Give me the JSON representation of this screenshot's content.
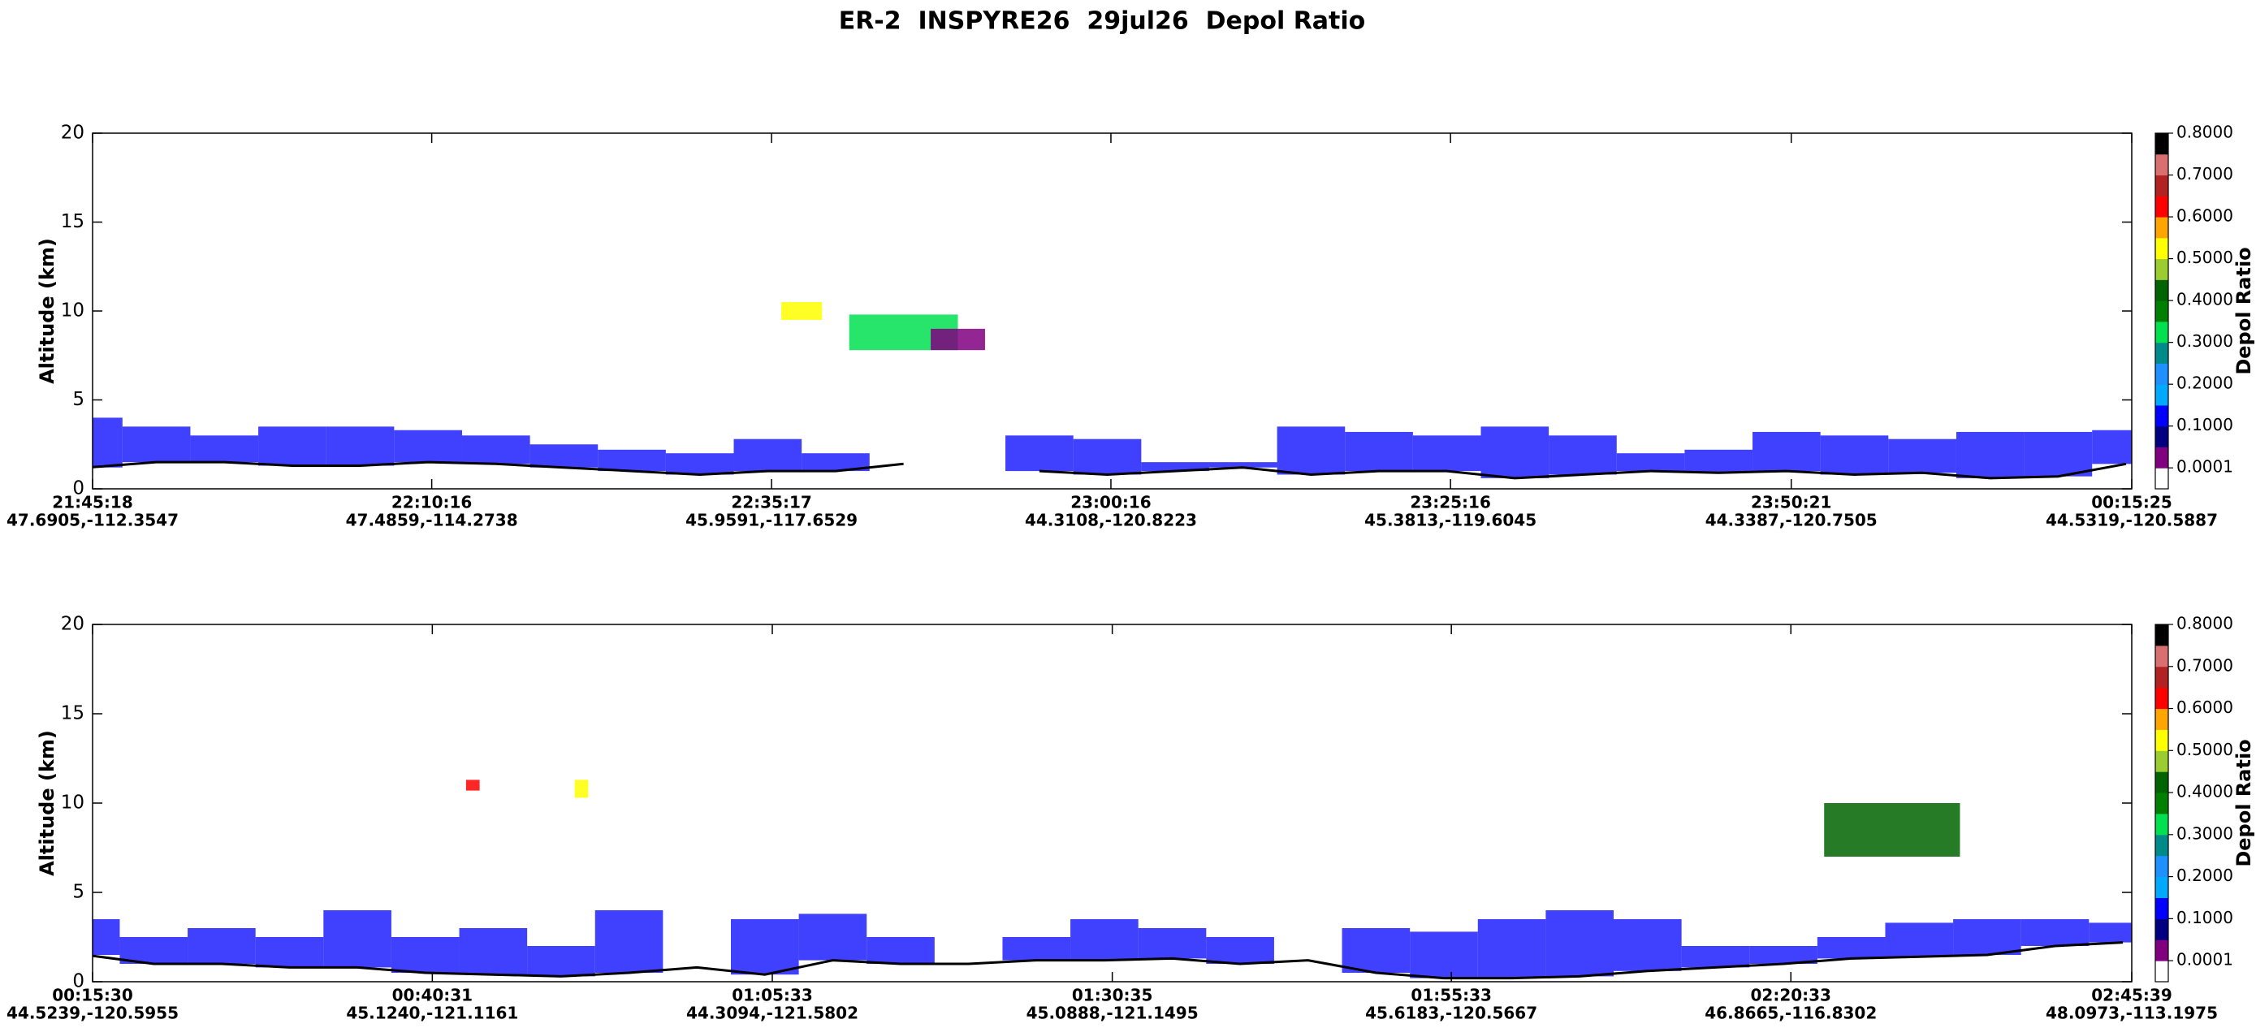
{
  "title": "ER-2  INSPYRE26  29jul26  Depol Ratio",
  "chart_data": [
    {
      "type": "curtain",
      "ylabel": "Altitude (km)",
      "ylim": [
        0,
        20
      ],
      "yticks": [
        0,
        5,
        10,
        15,
        20
      ],
      "xticks": [
        {
          "time": "21:45:18",
          "coords": "47.6905,-112.3547"
        },
        {
          "time": "22:10:16",
          "coords": "47.4859,-114.2738"
        },
        {
          "time": "22:35:17",
          "coords": "45.9591,-117.6529"
        },
        {
          "time": "23:00:16",
          "coords": "44.3108,-120.8223"
        },
        {
          "time": "23:25:16",
          "coords": "45.3813,-119.6045"
        },
        {
          "time": "23:50:21",
          "coords": "44.3387,-120.7505"
        },
        {
          "time": "00:15:25",
          "coords": "44.5319,-120.5887"
        }
      ],
      "x": [
        "21:45",
        "21:50",
        "21:55",
        "22:00",
        "22:05",
        "22:10",
        "22:15",
        "22:20",
        "22:25",
        "22:30",
        "22:35",
        "22:40",
        "22:45",
        "22:50",
        "22:55",
        "23:00",
        "23:05",
        "23:10",
        "23:15",
        "23:20",
        "23:25",
        "23:30",
        "23:35",
        "23:40",
        "23:45",
        "23:50",
        "23:55",
        "00:00",
        "00:05",
        "00:10",
        "00:15"
      ],
      "surface": {
        "color": "#000000",
        "values": [
          1.2,
          1.5,
          1.5,
          1.3,
          1.3,
          1.5,
          1.4,
          1.2,
          1.0,
          0.8,
          1.0,
          1.0,
          1.4,
          null,
          1.0,
          0.8,
          1.0,
          1.2,
          0.8,
          1.0,
          1.0,
          0.6,
          0.8,
          1.0,
          0.9,
          1.0,
          0.8,
          0.9,
          0.6,
          0.7,
          1.4
        ]
      },
      "layer": {
        "depol": 0.12,
        "top": [
          4.0,
          3.5,
          3.0,
          3.5,
          3.5,
          3.3,
          3.0,
          2.5,
          2.2,
          2.0,
          2.8,
          2.0,
          null,
          null,
          3.0,
          2.8,
          1.5,
          1.5,
          3.5,
          3.2,
          3.0,
          3.5,
          3.0,
          2.0,
          2.2,
          3.2,
          3.0,
          2.8,
          3.2,
          3.2,
          3.3
        ]
      },
      "clouds": [
        {
          "start": "22:36",
          "end": "22:39",
          "bottom": 9.5,
          "top": 10.5,
          "depol": 0.5
        },
        {
          "start": "22:41",
          "end": "22:49",
          "bottom": 7.8,
          "top": 9.8,
          "depol": 0.35
        },
        {
          "start": "22:47",
          "end": "22:51",
          "bottom": 7.8,
          "top": 9.0,
          "depol": 0.02
        }
      ],
      "colorbar": {
        "label": "Depol Ratio",
        "clim": [
          -0.05,
          0.8
        ],
        "colors": [
          "#ffffff",
          "#800080",
          "#000080",
          "#0000ff",
          "#00aaff",
          "#1e90ff",
          "#008b8b",
          "#00e050",
          "#008000",
          "#006400",
          "#9acd32",
          "#ffff00",
          "#ffa500",
          "#ff0000",
          "#b22222",
          "#d87070",
          "#000000"
        ],
        "ticks": [
          {
            "value": 0.0001,
            "label": "0.0001"
          },
          {
            "value": 0.1,
            "label": "0.1000"
          },
          {
            "value": 0.2,
            "label": "0.2000"
          },
          {
            "value": 0.3,
            "label": "0.3000"
          },
          {
            "value": 0.4,
            "label": "0.4000"
          },
          {
            "value": 0.5,
            "label": "0.5000"
          },
          {
            "value": 0.6,
            "label": "0.6000"
          },
          {
            "value": 0.7,
            "label": "0.7000"
          },
          {
            "value": 0.8,
            "label": "0.8000"
          }
        ]
      }
    },
    {
      "type": "curtain",
      "ylabel": "Altitude (km)",
      "ylim": [
        0,
        20
      ],
      "yticks": [
        0,
        5,
        10,
        15,
        20
      ],
      "xticks": [
        {
          "time": "00:15:30",
          "coords": "44.5239,-120.5955"
        },
        {
          "time": "00:40:31",
          "coords": "45.1240,-121.1161"
        },
        {
          "time": "01:05:33",
          "coords": "44.3094,-121.5802"
        },
        {
          "time": "01:30:35",
          "coords": "45.0888,-121.1495"
        },
        {
          "time": "01:55:33",
          "coords": "45.6183,-120.5667"
        },
        {
          "time": "02:20:33",
          "coords": "46.8665,-116.8302"
        },
        {
          "time": "02:45:39",
          "coords": "48.0973,-113.1975"
        }
      ],
      "x": [
        "00:15",
        "00:20",
        "00:25",
        "00:30",
        "00:35",
        "00:40",
        "00:45",
        "00:50",
        "00:55",
        "01:00",
        "01:05",
        "01:10",
        "01:15",
        "01:20",
        "01:25",
        "01:30",
        "01:35",
        "01:40",
        "01:45",
        "01:50",
        "01:55",
        "02:00",
        "02:05",
        "02:10",
        "02:15",
        "02:20",
        "02:25",
        "02:30",
        "02:35",
        "02:40",
        "02:45"
      ],
      "surface": {
        "color": "#000000",
        "values": [
          1.5,
          1.0,
          1.0,
          0.8,
          0.8,
          0.5,
          0.4,
          0.3,
          0.5,
          0.8,
          0.4,
          1.2,
          1.0,
          1.0,
          1.2,
          1.2,
          1.3,
          1.0,
          1.2,
          0.5,
          0.2,
          0.2,
          0.3,
          0.6,
          0.8,
          1.0,
          1.3,
          1.4,
          1.5,
          2.0,
          2.2
        ]
      },
      "layer": {
        "depol": 0.12,
        "top": [
          3.5,
          2.5,
          3.0,
          2.5,
          4.0,
          2.5,
          3.0,
          2.0,
          4.0,
          null,
          3.5,
          3.8,
          2.5,
          null,
          2.5,
          3.5,
          3.0,
          2.5,
          null,
          3.0,
          2.8,
          3.5,
          4.0,
          3.5,
          2.0,
          2.0,
          2.5,
          3.3,
          3.5,
          3.5,
          3.3
        ]
      },
      "clouds": [
        {
          "start": "00:43",
          "end": "00:44",
          "bottom": 10.7,
          "top": 11.3,
          "depol": 0.62
        },
        {
          "start": "00:51",
          "end": "00:52",
          "bottom": 10.3,
          "top": 11.3,
          "depol": 0.52
        },
        {
          "start": "02:23",
          "end": "02:33",
          "bottom": 7.0,
          "top": 10.0,
          "depol": 0.45
        }
      ],
      "colorbar": {
        "label": "Depol Ratio",
        "clim": [
          -0.05,
          0.8
        ],
        "colors": [
          "#ffffff",
          "#800080",
          "#000080",
          "#0000ff",
          "#00aaff",
          "#1e90ff",
          "#008b8b",
          "#00e050",
          "#008000",
          "#006400",
          "#9acd32",
          "#ffff00",
          "#ffa500",
          "#ff0000",
          "#b22222",
          "#d87070",
          "#000000"
        ],
        "ticks": [
          {
            "value": 0.0001,
            "label": "0.0001"
          },
          {
            "value": 0.1,
            "label": "0.1000"
          },
          {
            "value": 0.2,
            "label": "0.2000"
          },
          {
            "value": 0.3,
            "label": "0.3000"
          },
          {
            "value": 0.4,
            "label": "0.4000"
          },
          {
            "value": 0.5,
            "label": "0.5000"
          },
          {
            "value": 0.6,
            "label": "0.6000"
          },
          {
            "value": 0.7,
            "label": "0.7000"
          },
          {
            "value": 0.8,
            "label": "0.8000"
          }
        ]
      }
    }
  ]
}
